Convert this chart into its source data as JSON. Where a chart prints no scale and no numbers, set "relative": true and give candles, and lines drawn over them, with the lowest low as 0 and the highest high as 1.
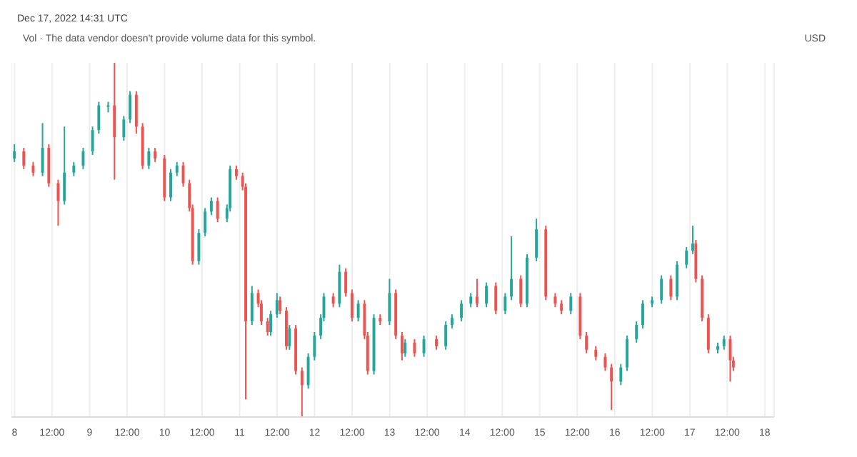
{
  "chart_data": {
    "type": "candlestick",
    "relative": true,
    "grid": "x",
    "annotations": [
      "Dec 17, 2022 14:31 UTC",
      "Vol · The data vendor doesn't provide volume data for this symbol.",
      "USD"
    ],
    "xlim": [
      "2022-12-07T23:00",
      "2022-12-18T03:00"
    ],
    "xticks": [
      {
        "value": "2022-12-08",
        "label": "8"
      },
      {
        "value": "2022-12-08T12:00",
        "label": "12:00"
      },
      {
        "value": "2022-12-09",
        "label": "9"
      },
      {
        "value": "2022-12-09T12:00",
        "label": "12:00"
      },
      {
        "value": "2022-12-10",
        "label": "10"
      },
      {
        "value": "2022-12-10T12:00",
        "label": "12:00"
      },
      {
        "value": "2022-12-11",
        "label": "11"
      },
      {
        "value": "2022-12-11T12:00",
        "label": "12:00"
      },
      {
        "value": "2022-12-12",
        "label": "12"
      },
      {
        "value": "2022-12-12T12:00",
        "label": "12:00"
      },
      {
        "value": "2022-12-13",
        "label": "13"
      },
      {
        "value": "2022-12-13T12:00",
        "label": "12:00"
      },
      {
        "value": "2022-12-14",
        "label": "14"
      },
      {
        "value": "2022-12-14T12:00",
        "label": "12:00"
      },
      {
        "value": "2022-12-15",
        "label": "15"
      },
      {
        "value": "2022-12-15T12:00",
        "label": "12:00"
      },
      {
        "value": "2022-12-16",
        "label": "16"
      },
      {
        "value": "2022-12-16T12:00",
        "label": "12:00"
      },
      {
        "value": "2022-12-17",
        "label": "17"
      },
      {
        "value": "2022-12-17T12:00",
        "label": "12:00"
      },
      {
        "value": "2022-12-18",
        "label": "18"
      }
    ],
    "x": [
      "2022-12-08T00:00",
      "2022-12-08T03:00",
      "2022-12-08T06:00",
      "2022-12-08T09:00",
      "2022-12-08T11:00",
      "2022-12-08T14:00",
      "2022-12-08T16:00",
      "2022-12-08T19:00",
      "2022-12-08T22:00",
      "2022-12-09T01:00",
      "2022-12-09T03:00",
      "2022-12-09T06:00",
      "2022-12-09T08:00",
      "2022-12-09T11:00",
      "2022-12-09T13:00",
      "2022-12-09T15:00",
      "2022-12-09T17:00",
      "2022-12-09T19:00",
      "2022-12-09T21:00",
      "2022-12-10T00:00",
      "2022-12-10T02:00",
      "2022-12-10T04:00",
      "2022-12-10T06:00",
      "2022-12-10T08:00",
      "2022-12-10T09:00",
      "2022-12-10T11:00",
      "2022-12-10T13:00",
      "2022-12-10T15:00",
      "2022-12-10T17:00",
      "2022-12-10T20:00",
      "2022-12-10T21:00",
      "2022-12-10T23:00",
      "2022-12-11T01:00",
      "2022-12-11T02:00",
      "2022-12-11T04:00",
      "2022-12-11T06:00",
      "2022-12-11T07:00",
      "2022-12-11T09:00",
      "2022-12-11T10:00",
      "2022-12-11T12:00",
      "2022-12-11T13:00",
      "2022-12-11T15:00",
      "2022-12-11T16:00",
      "2022-12-11T18:00",
      "2022-12-11T20:00",
      "2022-12-11T22:00",
      "2022-12-12T00:00",
      "2022-12-12T02:00",
      "2022-12-12T03:00",
      "2022-12-12T06:00",
      "2022-12-12T08:00",
      "2022-12-12T10:00",
      "2022-12-12T12:00",
      "2022-12-12T14:00",
      "2022-12-12T16:00",
      "2022-12-12T17:00",
      "2022-12-12T19:00",
      "2022-12-12T21:00",
      "2022-12-13T00:00",
      "2022-12-13T02:00",
      "2022-12-13T04:00",
      "2022-12-13T05:00",
      "2022-12-13T08:00",
      "2022-12-13T11:00",
      "2022-12-13T15:00",
      "2022-12-13T18:00",
      "2022-12-13T20:00",
      "2022-12-13T23:00",
      "2022-12-14T02:00",
      "2022-12-14T04:00",
      "2022-12-14T07:00",
      "2022-12-14T10:00",
      "2022-12-14T13:00",
      "2022-12-14T15:00",
      "2022-12-14T18:00",
      "2022-12-14T20:00",
      "2022-12-14T23:00",
      "2022-12-15T02:00",
      "2022-12-15T05:00",
      "2022-12-15T07:00",
      "2022-12-15T10:00",
      "2022-12-15T13:00",
      "2022-12-15T15:00",
      "2022-12-15T18:00",
      "2022-12-15T21:00",
      "2022-12-15T23:00",
      "2022-12-16T02:00",
      "2022-12-16T04:00",
      "2022-12-16T07:00",
      "2022-12-16T09:00",
      "2022-12-16T12:00",
      "2022-12-16T15:00",
      "2022-12-16T18:00",
      "2022-12-16T20:00",
      "2022-12-16T23:00",
      "2022-12-17T01:00",
      "2022-12-17T02:00",
      "2022-12-17T04:00",
      "2022-12-17T06:00",
      "2022-12-17T09:00",
      "2022-12-17T11:00",
      "2022-12-17T13:00",
      "2022-12-17T14:00"
    ],
    "ohlc": [
      [
        0.73,
        0.77,
        0.72,
        0.75
      ],
      [
        0.75,
        0.76,
        0.7,
        0.71
      ],
      [
        0.71,
        0.72,
        0.68,
        0.69
      ],
      [
        0.69,
        0.83,
        0.68,
        0.76
      ],
      [
        0.76,
        0.77,
        0.65,
        0.66
      ],
      [
        0.66,
        0.67,
        0.54,
        0.61
      ],
      [
        0.61,
        0.82,
        0.6,
        0.69
      ],
      [
        0.69,
        0.72,
        0.68,
        0.71
      ],
      [
        0.71,
        0.76,
        0.7,
        0.75
      ],
      [
        0.75,
        0.82,
        0.74,
        0.81
      ],
      [
        0.81,
        0.89,
        0.8,
        0.88
      ],
      [
        0.88,
        0.89,
        0.86,
        0.88
      ],
      [
        0.88,
        1,
        0.67,
        0.79
      ],
      [
        0.79,
        0.85,
        0.78,
        0.84
      ],
      [
        0.84,
        0.92,
        0.83,
        0.91
      ],
      [
        0.91,
        0.92,
        0.8,
        0.82
      ],
      [
        0.82,
        0.83,
        0.7,
        0.71
      ],
      [
        0.71,
        0.76,
        0.7,
        0.75
      ],
      [
        0.75,
        0.76,
        0.72,
        0.73
      ],
      [
        0.73,
        0.74,
        0.61,
        0.62
      ],
      [
        0.62,
        0.7,
        0.61,
        0.69
      ],
      [
        0.69,
        0.72,
        0.68,
        0.71
      ],
      [
        0.71,
        0.72,
        0.65,
        0.66
      ],
      [
        0.66,
        0.67,
        0.58,
        0.59
      ],
      [
        0.59,
        0.6,
        0.43,
        0.44
      ],
      [
        0.44,
        0.53,
        0.43,
        0.52
      ],
      [
        0.52,
        0.59,
        0.51,
        0.58
      ],
      [
        0.58,
        0.62,
        0.57,
        0.61
      ],
      [
        0.61,
        0.62,
        0.55,
        0.56
      ],
      [
        0.56,
        0.6,
        0.55,
        0.59
      ],
      [
        0.59,
        0.71,
        0.58,
        0.7
      ],
      [
        0.7,
        0.71,
        0.67,
        0.68
      ],
      [
        0.68,
        0.69,
        0.64,
        0.65
      ],
      [
        0.65,
        0.66,
        0.05,
        0.27
      ],
      [
        0.27,
        0.37,
        0.26,
        0.35
      ],
      [
        0.35,
        0.36,
        0.31,
        0.32
      ],
      [
        0.32,
        0.33,
        0.26,
        0.27
      ],
      [
        0.27,
        0.28,
        0.23,
        0.24
      ],
      [
        0.24,
        0.3,
        0.23,
        0.29
      ],
      [
        0.29,
        0.35,
        0.28,
        0.33
      ],
      [
        0.33,
        0.34,
        0.29,
        0.3
      ],
      [
        0.3,
        0.31,
        0.19,
        0.2
      ],
      [
        0.2,
        0.26,
        0.19,
        0.25
      ],
      [
        0.25,
        0.26,
        0.12,
        0.13
      ],
      [
        0.13,
        0.14,
        0,
        0.09
      ],
      [
        0.09,
        0.18,
        0.08,
        0.17
      ],
      [
        0.17,
        0.24,
        0.16,
        0.23
      ],
      [
        0.23,
        0.29,
        0.22,
        0.28
      ],
      [
        0.28,
        0.35,
        0.27,
        0.34
      ],
      [
        0.34,
        0.35,
        0.31,
        0.32
      ],
      [
        0.32,
        0.43,
        0.31,
        0.41
      ],
      [
        0.41,
        0.42,
        0.34,
        0.35
      ],
      [
        0.35,
        0.36,
        0.27,
        0.28
      ],
      [
        0.28,
        0.33,
        0.27,
        0.32
      ],
      [
        0.32,
        0.33,
        0.22,
        0.23
      ],
      [
        0.23,
        0.24,
        0.12,
        0.13
      ],
      [
        0.13,
        0.29,
        0.12,
        0.28
      ],
      [
        0.28,
        0.29,
        0.26,
        0.27
      ],
      [
        0.27,
        0.39,
        0.26,
        0.35
      ],
      [
        0.35,
        0.36,
        0.22,
        0.23
      ],
      [
        0.23,
        0.24,
        0.16,
        0.18
      ],
      [
        0.18,
        0.22,
        0.17,
        0.21
      ],
      [
        0.21,
        0.22,
        0.17,
        0.18
      ],
      [
        0.18,
        0.23,
        0.17,
        0.22
      ],
      [
        0.22,
        0.23,
        0.19,
        0.2
      ],
      [
        0.2,
        0.27,
        0.19,
        0.26
      ],
      [
        0.26,
        0.29,
        0.25,
        0.28
      ],
      [
        0.28,
        0.33,
        0.27,
        0.32
      ],
      [
        0.32,
        0.35,
        0.31,
        0.34
      ],
      [
        0.34,
        0.39,
        0.31,
        0.32
      ],
      [
        0.32,
        0.38,
        0.31,
        0.37
      ],
      [
        0.37,
        0.38,
        0.29,
        0.3
      ],
      [
        0.3,
        0.35,
        0.29,
        0.34
      ],
      [
        0.34,
        0.51,
        0.33,
        0.39
      ],
      [
        0.39,
        0.4,
        0.31,
        0.32
      ],
      [
        0.32,
        0.46,
        0.31,
        0.45
      ],
      [
        0.45,
        0.56,
        0.44,
        0.53
      ],
      [
        0.53,
        0.54,
        0.33,
        0.34
      ],
      [
        0.34,
        0.35,
        0.31,
        0.32
      ],
      [
        0.32,
        0.33,
        0.29,
        0.3
      ],
      [
        0.3,
        0.35,
        0.29,
        0.34
      ],
      [
        0.34,
        0.35,
        0.22,
        0.23
      ],
      [
        0.23,
        0.24,
        0.18,
        0.19
      ],
      [
        0.19,
        0.2,
        0.16,
        0.17
      ],
      [
        0.17,
        0.18,
        0.13,
        0.14
      ],
      [
        0.14,
        0.15,
        0.02,
        0.1
      ],
      [
        0.1,
        0.15,
        0.09,
        0.14
      ],
      [
        0.14,
        0.23,
        0.13,
        0.22
      ],
      [
        0.22,
        0.27,
        0.21,
        0.26
      ],
      [
        0.26,
        0.33,
        0.25,
        0.32
      ],
      [
        0.32,
        0.34,
        0.31,
        0.33
      ],
      [
        0.33,
        0.4,
        0.32,
        0.39
      ],
      [
        0.39,
        0.4,
        0.33,
        0.34
      ],
      [
        0.34,
        0.44,
        0.33,
        0.43
      ],
      [
        0.43,
        0.48,
        0.42,
        0.47
      ],
      [
        0.47,
        0.54,
        0.46,
        0.49
      ],
      [
        0.49,
        0.5,
        0.38,
        0.39
      ],
      [
        0.39,
        0.4,
        0.27,
        0.28
      ],
      [
        0.28,
        0.29,
        0.18,
        0.19
      ],
      [
        0.19,
        0.21,
        0.18,
        0.2
      ],
      [
        0.2,
        0.23,
        0.19,
        0.22
      ],
      [
        0.22,
        0.23,
        0.1,
        0.16
      ],
      [
        0.16,
        0.17,
        0.13,
        0.14
      ]
    ]
  }
}
